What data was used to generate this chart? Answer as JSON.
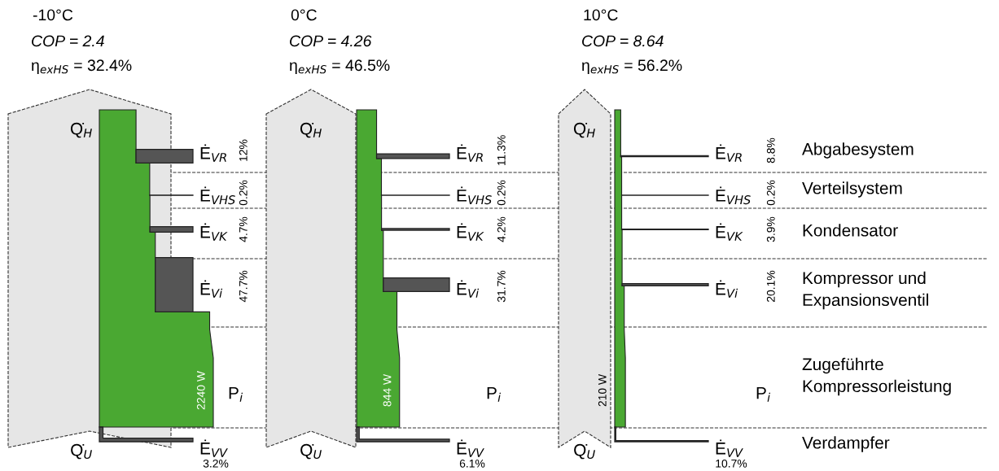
{
  "chart_data": [
    {
      "type": "other",
      "title": "-10°C",
      "subtitle": "COP = 2.4",
      "categories": [
        "Ė$_{VR}$",
        "Ė$_{VHS}$",
        "Ė$_{VK}$",
        "Ė$_{Vi}$",
        "Ė$_{VV}$"
      ],
      "values": [
        12,
        0.2,
        4.7,
        47.7,
        3.2
      ],
      "value_labels": [
        "12%",
        "0.2%",
        "4.7%",
        "47.7%",
        "3.2%"
      ],
      "annotations": [
        "η$_{exHS}$ = 32.4%",
        "Q̇$_{H}$",
        "Q̇$_{U}$",
        "P$_{i}$",
        "2240 W"
      ]
    },
    {
      "type": "other",
      "title": "0°C",
      "subtitle": "COP = 4.26",
      "categories": [
        "Ė$_{VR}$",
        "Ė$_{VHS}$",
        "Ė$_{VK}$",
        "Ė$_{Vi}$",
        "Ė$_{VV}$"
      ],
      "values": [
        11.3,
        0.2,
        4.2,
        31.7,
        6.1
      ],
      "value_labels": [
        "11.3%",
        "0.2%",
        "4.2%",
        "31.7%",
        "6.1%"
      ],
      "annotations": [
        "η$_{exHS}$ = 46.5%",
        "Q̇$_{H}$",
        "Q̇$_{U}$",
        "P$_{i}$",
        "844 W"
      ]
    },
    {
      "type": "other",
      "title": "10°C",
      "subtitle": "COP = 8.64",
      "categories": [
        "Ė$_{VR}$",
        "Ė$_{VHS}$",
        "Ė$_{VK}$",
        "Ė$_{Vi}$",
        "Ė$_{VV}$"
      ],
      "values": [
        8.8,
        0.2,
        3.9,
        20.1,
        10.7
      ],
      "value_labels": [
        "8.8%",
        "0.2%",
        "3.9%",
        "20.1%",
        "10.7%"
      ],
      "annotations": [
        "η$_{exHS}$ = 56.2%",
        "Q̇$_{H}$",
        "Q̇$_{U}$",
        "P$_{i}$",
        "210 W"
      ]
    },
    {
      "type": "other",
      "annotations": [
        "Abgabesystem",
        "Verteilsystem",
        "Kondensator",
        "Kompressor und\nExpansionsventil",
        "Zugeführte\nKompressorleistung",
        "Verdampfer"
      ]
    }
  ]
}
